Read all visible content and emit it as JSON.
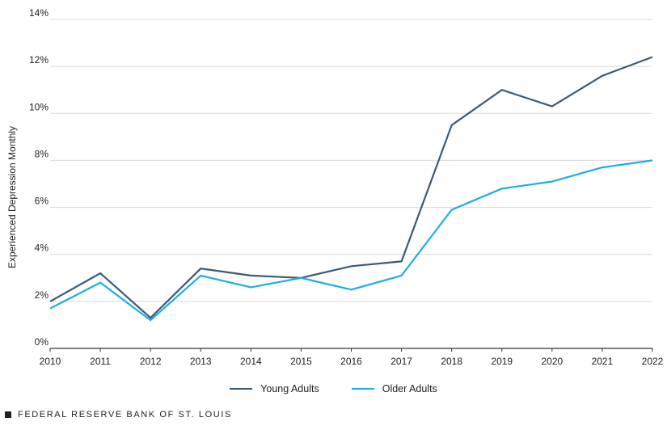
{
  "chart_data": {
    "type": "line",
    "title": "",
    "xlabel": "",
    "ylabel": "Experienced Depression Monthly",
    "x": [
      "2010",
      "2011",
      "2012",
      "2013",
      "2014",
      "2015",
      "2016",
      "2017",
      "2018",
      "2019",
      "2020",
      "2021",
      "2022"
    ],
    "ylim": [
      0,
      14
    ],
    "yticks": [
      "0%",
      "2%",
      "4%",
      "6%",
      "8%",
      "10%",
      "12%",
      "14%"
    ],
    "ytick_values": [
      0,
      2,
      4,
      6,
      8,
      10,
      12,
      14
    ],
    "grid": "horizontal",
    "legend_position": "bottom-center",
    "series": [
      {
        "name": "Young Adults",
        "color": "#3d5a73",
        "values": [
          2.0,
          3.2,
          1.3,
          3.4,
          3.1,
          3.0,
          3.5,
          3.7,
          9.5,
          11.0,
          10.3,
          11.6,
          12.4
        ]
      },
      {
        "name": "Older Adults",
        "color": "#1aaee6",
        "values": [
          1.7,
          2.8,
          1.2,
          3.1,
          2.6,
          3.0,
          2.5,
          3.1,
          5.9,
          6.8,
          7.1,
          7.7,
          8.0
        ]
      }
    ]
  },
  "legend": {
    "young_label": "Young Adults",
    "older_label": "Older Adults"
  },
  "footer": {
    "source": "FEDERAL RESERVE BANK OF ST. LOUIS"
  }
}
